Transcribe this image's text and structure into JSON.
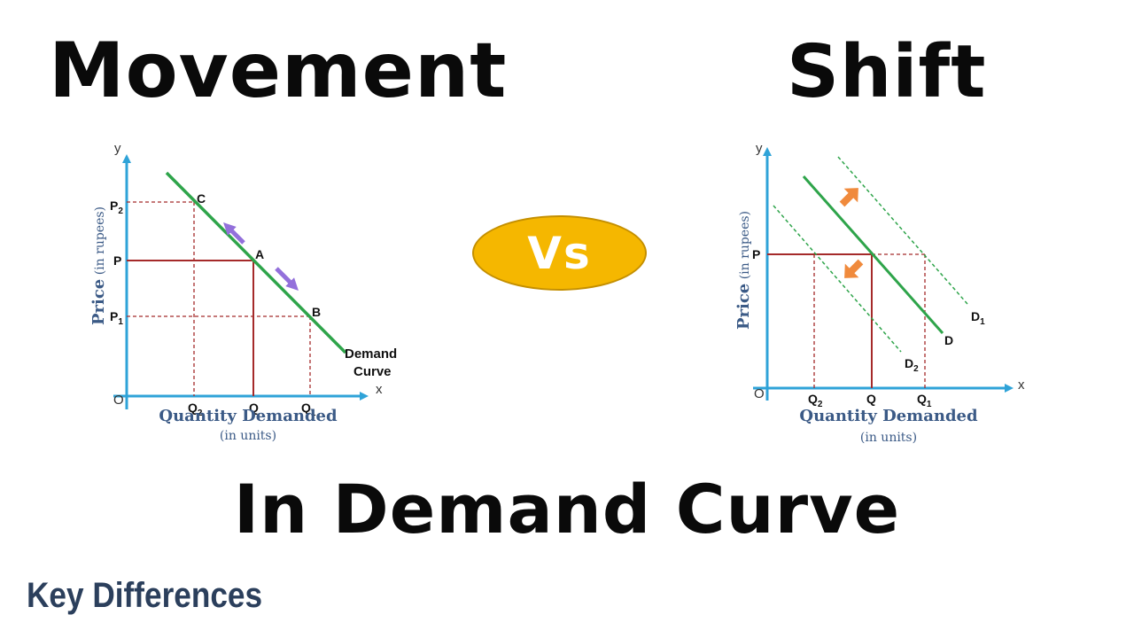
{
  "titles": {
    "left": "Movement",
    "right": "Shift",
    "bottom": "In Demand Curve",
    "vs": "Vs"
  },
  "brand": "Key Differences",
  "colors": {
    "axis": "#2fa3d8",
    "curve": "#2ea44a",
    "guide": "#a52a2a",
    "move_arrow": "#9370db",
    "shift_arrow": "#f08a3c",
    "vs_fill": "#f5b700",
    "brand": "#2b3f5c"
  },
  "left_diagram": {
    "y_axis": "y",
    "x_axis": "x",
    "origin": "O",
    "y_label": "Price",
    "y_label_unit": "(in rupees)",
    "x_label": "Quantity Demanded",
    "x_label_unit": "(in units)",
    "price_labels": [
      {
        "main": "P",
        "sub": "2"
      },
      {
        "main": "P",
        "sub": ""
      },
      {
        "main": "P",
        "sub": "1"
      }
    ],
    "quantity_labels": [
      {
        "main": "Q",
        "sub": "2"
      },
      {
        "main": "Q",
        "sub": ""
      },
      {
        "main": "Q",
        "sub": "1"
      }
    ],
    "points": [
      "C",
      "A",
      "B"
    ],
    "curve_label": [
      "Demand",
      "Curve"
    ]
  },
  "right_diagram": {
    "y_axis": "y",
    "x_axis": "x",
    "origin": "O",
    "y_label": "Price",
    "y_label_unit": "(in rupees)",
    "x_label": "Quantity Demanded",
    "x_label_unit": "(in units)",
    "price_labels": [
      {
        "main": "P",
        "sub": ""
      }
    ],
    "quantity_labels": [
      {
        "main": "Q",
        "sub": "2"
      },
      {
        "main": "Q",
        "sub": ""
      },
      {
        "main": "Q",
        "sub": "1"
      }
    ],
    "curve_labels": [
      {
        "main": "D",
        "sub": "1"
      },
      {
        "main": "D",
        "sub": ""
      },
      {
        "main": "D",
        "sub": "2"
      }
    ]
  }
}
